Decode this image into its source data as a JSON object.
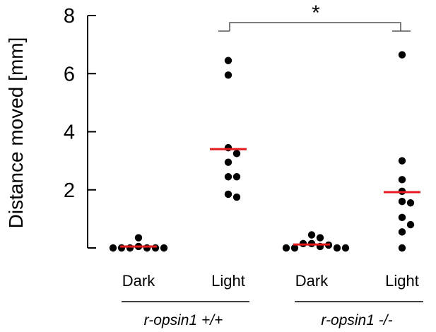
{
  "chart_data": {
    "type": "scatter",
    "ylabel": "Distance moved [mm]",
    "ylim": [
      0,
      8
    ],
    "yticks": [
      2,
      4,
      6,
      8
    ],
    "categories": [
      "Dark",
      "Light",
      "Dark",
      "Light"
    ],
    "groups": [
      {
        "label": "r-opsin1 +/+",
        "categories": [
          0,
          1
        ]
      },
      {
        "label": "r-opsin1 -/-",
        "categories": [
          2,
          3
        ]
      }
    ],
    "series": [
      {
        "category": 0,
        "mean": 0.05,
        "points": [
          0.35,
          0.05,
          0.0,
          0.0,
          0.0,
          0.0,
          0.0,
          0.0
        ]
      },
      {
        "category": 1,
        "mean": 3.4,
        "points": [
          6.45,
          5.95,
          3.45,
          3.25,
          2.95,
          2.45,
          2.45,
          1.85,
          1.75
        ]
      },
      {
        "category": 2,
        "mean": 0.12,
        "points": [
          0.45,
          0.35,
          0.15,
          0.15,
          0.1,
          0.05,
          0.0,
          0.0,
          0.0,
          0.0
        ]
      },
      {
        "category": 3,
        "mean": 1.92,
        "points": [
          6.65,
          3.0,
          2.35,
          1.95,
          1.6,
          1.55,
          1.05,
          0.8,
          0.55,
          0.0
        ]
      }
    ],
    "mean_color": "#e41a1c",
    "point_color": "#000000",
    "significance": {
      "from": 1,
      "to": 3,
      "label": "*"
    }
  }
}
